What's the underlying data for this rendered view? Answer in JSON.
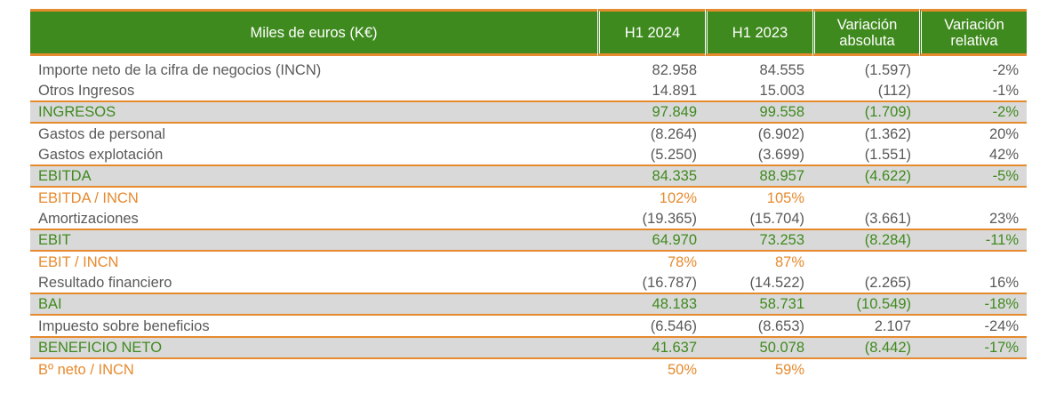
{
  "header": {
    "label": "Miles de euros (K€)",
    "h1_2024": "H1 2024",
    "h1_2023": "H1 2023",
    "var_abs_line1": "Variación",
    "var_abs_line2": "absoluta",
    "var_rel_line1": "Variación",
    "var_rel_line2": "relativa"
  },
  "rows": [
    {
      "type": "normal",
      "label": "Importe neto de la cifra de negocios (INCN)",
      "h1_2024": "82.958",
      "h1_2023": "84.555",
      "var_abs": "(1.597)",
      "var_rel": "-2%"
    },
    {
      "type": "normal",
      "label": "Otros Ingresos",
      "h1_2024": "14.891",
      "h1_2023": "15.003",
      "var_abs": "(112)",
      "var_rel": "-1%"
    },
    {
      "type": "total",
      "label": "INGRESOS",
      "h1_2024": "97.849",
      "h1_2023": "99.558",
      "var_abs": "(1.709)",
      "var_rel": "-2%"
    },
    {
      "type": "normal",
      "label": "Gastos de personal",
      "h1_2024": "(8.264)",
      "h1_2023": "(6.902)",
      "var_abs": "(1.362)",
      "var_rel": "20%"
    },
    {
      "type": "normal",
      "label": "Gastos explotación",
      "h1_2024": "(5.250)",
      "h1_2023": "(3.699)",
      "var_abs": "(1.551)",
      "var_rel": "42%"
    },
    {
      "type": "total",
      "label": "EBITDA",
      "h1_2024": "84.335",
      "h1_2023": "88.957",
      "var_abs": "(4.622)",
      "var_rel": "-5%"
    },
    {
      "type": "ratio",
      "label": "EBITDA / INCN",
      "h1_2024": "102%",
      "h1_2023": "105%",
      "var_abs": "",
      "var_rel": ""
    },
    {
      "type": "normal",
      "label": "Amortizaciones",
      "h1_2024": "(19.365)",
      "h1_2023": "(15.704)",
      "var_abs": "(3.661)",
      "var_rel": "23%"
    },
    {
      "type": "total",
      "label": "EBIT",
      "h1_2024": "64.970",
      "h1_2023": "73.253",
      "var_abs": "(8.284)",
      "var_rel": "-11%"
    },
    {
      "type": "ratio",
      "label": "EBIT / INCN",
      "h1_2024": "78%",
      "h1_2023": "87%",
      "var_abs": "",
      "var_rel": ""
    },
    {
      "type": "normal",
      "label": "Resultado financiero",
      "h1_2024": "(16.787)",
      "h1_2023": "(14.522)",
      "var_abs": "(2.265)",
      "var_rel": "16%"
    },
    {
      "type": "total",
      "label": "BAI",
      "h1_2024": "48.183",
      "h1_2023": "58.731",
      "var_abs": "(10.549)",
      "var_rel": "-18%"
    },
    {
      "type": "normal",
      "label": "Impuesto sobre beneficios",
      "h1_2024": "(6.546)",
      "h1_2023": "(8.653)",
      "var_abs": "2.107",
      "var_rel": "-24%"
    },
    {
      "type": "total",
      "label": "BENEFICIO NETO",
      "h1_2024": "41.637",
      "h1_2023": "50.078",
      "var_abs": "(8.442)",
      "var_rel": "-17%"
    },
    {
      "type": "ratio",
      "label": "Bº neto / INCN",
      "h1_2024": "50%",
      "h1_2023": "59%",
      "var_abs": "",
      "var_rel": ""
    }
  ],
  "colors": {
    "header_green": "#3f8a1e",
    "accent_orange": "#e68a2e",
    "total_row_gray": "#d9d9d9",
    "body_text": "#595959"
  }
}
